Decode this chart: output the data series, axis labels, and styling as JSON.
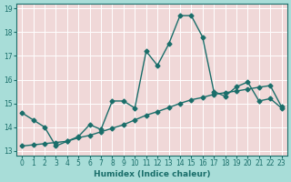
{
  "xlabel": "Humidex (Indice chaleur)",
  "ylabel": "",
  "outer_bg_color": "#a8ddd8",
  "plot_bg_color": "#f0d8d8",
  "grid_color": "#ffffff",
  "line_color": "#1a6e6a",
  "xlim": [
    -0.5,
    23.5
  ],
  "ylim": [
    12.8,
    19.2
  ],
  "yticks": [
    13,
    14,
    15,
    16,
    17,
    18,
    19
  ],
  "xticks": [
    0,
    1,
    2,
    3,
    4,
    5,
    6,
    7,
    8,
    9,
    10,
    11,
    12,
    13,
    14,
    15,
    16,
    17,
    18,
    19,
    20,
    21,
    22,
    23
  ],
  "series1_x": [
    0,
    1,
    2,
    3,
    4,
    5,
    6,
    7,
    8,
    9,
    10,
    11,
    12,
    13,
    14,
    15,
    16,
    17,
    18,
    19,
    20,
    21,
    22,
    23
  ],
  "series1_y": [
    14.6,
    14.3,
    14.0,
    13.2,
    13.4,
    13.6,
    14.1,
    13.9,
    15.1,
    15.1,
    14.8,
    17.2,
    16.6,
    17.5,
    18.7,
    18.7,
    17.8,
    15.5,
    15.3,
    15.7,
    15.9,
    15.1,
    15.2,
    14.8
  ],
  "series2_x": [
    0,
    1,
    2,
    3,
    4,
    5,
    6,
    7,
    8,
    9,
    10,
    11,
    12,
    13,
    14,
    15,
    16,
    17,
    18,
    19,
    20,
    21,
    22,
    23
  ],
  "series2_y": [
    13.2,
    13.25,
    13.3,
    13.35,
    13.4,
    13.55,
    13.65,
    13.8,
    13.95,
    14.1,
    14.3,
    14.5,
    14.65,
    14.82,
    15.0,
    15.15,
    15.25,
    15.38,
    15.45,
    15.52,
    15.6,
    15.68,
    15.75,
    14.85
  ],
  "marker": "D",
  "markersize": 2.5,
  "linewidth": 1.0,
  "tick_fontsize": 5.5,
  "xlabel_fontsize": 6.5
}
